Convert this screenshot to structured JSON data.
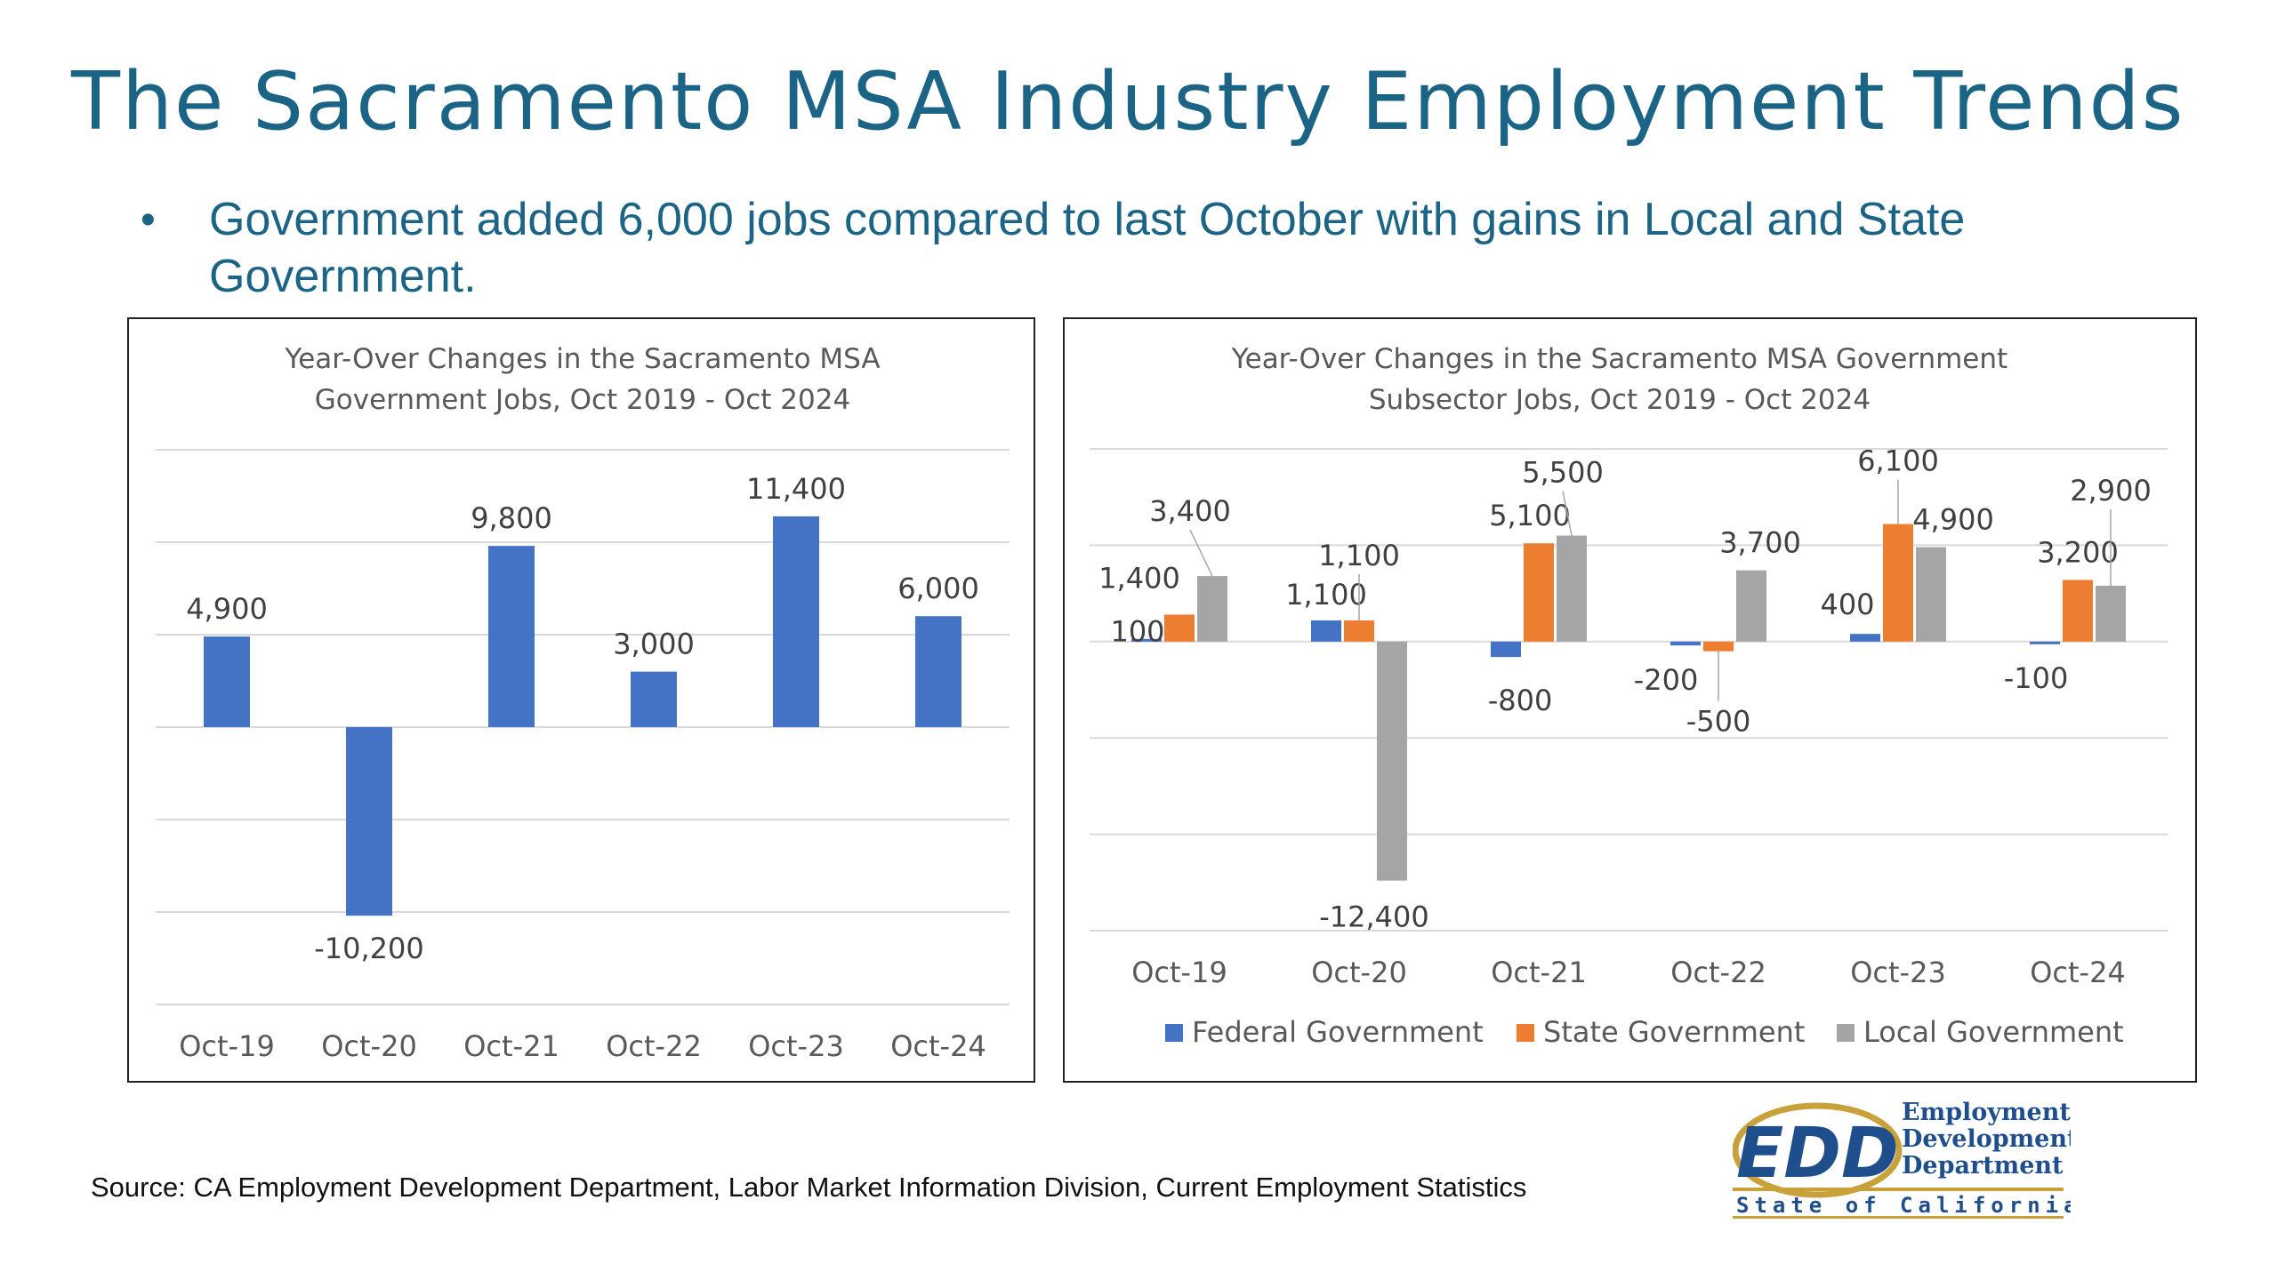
{
  "slide": {
    "title": "The Sacramento MSA Industry Employment Trends",
    "bullet": "Government added 6,000 jobs compared to last October with gains in Local and State Government.",
    "source": "Source: CA Employment Development Department, Labor Market Information Division, Current Employment Statistics"
  },
  "logo": {
    "mark": "EDD",
    "line1": "Employment",
    "line2": "Development",
    "line3": "Department",
    "tagline": "State of California"
  },
  "colors": {
    "title": "#1b6485",
    "federal": "#4472c4",
    "state": "#ed7d31",
    "local": "#a5a5a5",
    "logo_blue": "#1f4e8c",
    "logo_gold": "#c9a13a"
  },
  "chart_data": [
    {
      "type": "bar",
      "title_lines": [
        "Year-Over Changes in the Sacramento MSA",
        "Government Jobs, Oct 2019 - Oct 2024"
      ],
      "categories": [
        "Oct-19",
        "Oct-20",
        "Oct-21",
        "Oct-22",
        "Oct-23",
        "Oct-24"
      ],
      "values": [
        4900,
        -10200,
        9800,
        3000,
        11400,
        6000
      ],
      "data_labels": [
        "4,900",
        "-10,200",
        "9,800",
        "3,000",
        "11,400",
        "6,000"
      ],
      "ylim": [
        -15000,
        15000
      ],
      "grid": true,
      "legend": "none"
    },
    {
      "type": "bar",
      "title_lines": [
        "Year-Over Changes in the Sacramento MSA Government",
        "Subsector Jobs, Oct 2019 - Oct 2024"
      ],
      "categories": [
        "Oct-19",
        "Oct-20",
        "Oct-21",
        "Oct-22",
        "Oct-23",
        "Oct-24"
      ],
      "series": [
        {
          "name": "Federal Government",
          "values": [
            100,
            1100,
            -800,
            -200,
            400,
            -100
          ],
          "labels": [
            "100",
            "1,100",
            "-800",
            "-200",
            "400",
            "-100"
          ]
        },
        {
          "name": "State Government",
          "values": [
            1400,
            1100,
            5100,
            -500,
            6100,
            3200
          ],
          "labels": [
            "1,400",
            "1,100",
            "5,100",
            "-500",
            "6,100",
            "3,200"
          ]
        },
        {
          "name": "Local Government",
          "values": [
            3400,
            -12400,
            5500,
            3700,
            4900,
            2900
          ],
          "labels": [
            "3,400",
            "-12,400",
            "5,500",
            "3,700",
            "4,900",
            "2,900"
          ]
        }
      ],
      "ylim": [
        -15000,
        10000
      ],
      "grid": true,
      "legend": "bottom"
    }
  ]
}
